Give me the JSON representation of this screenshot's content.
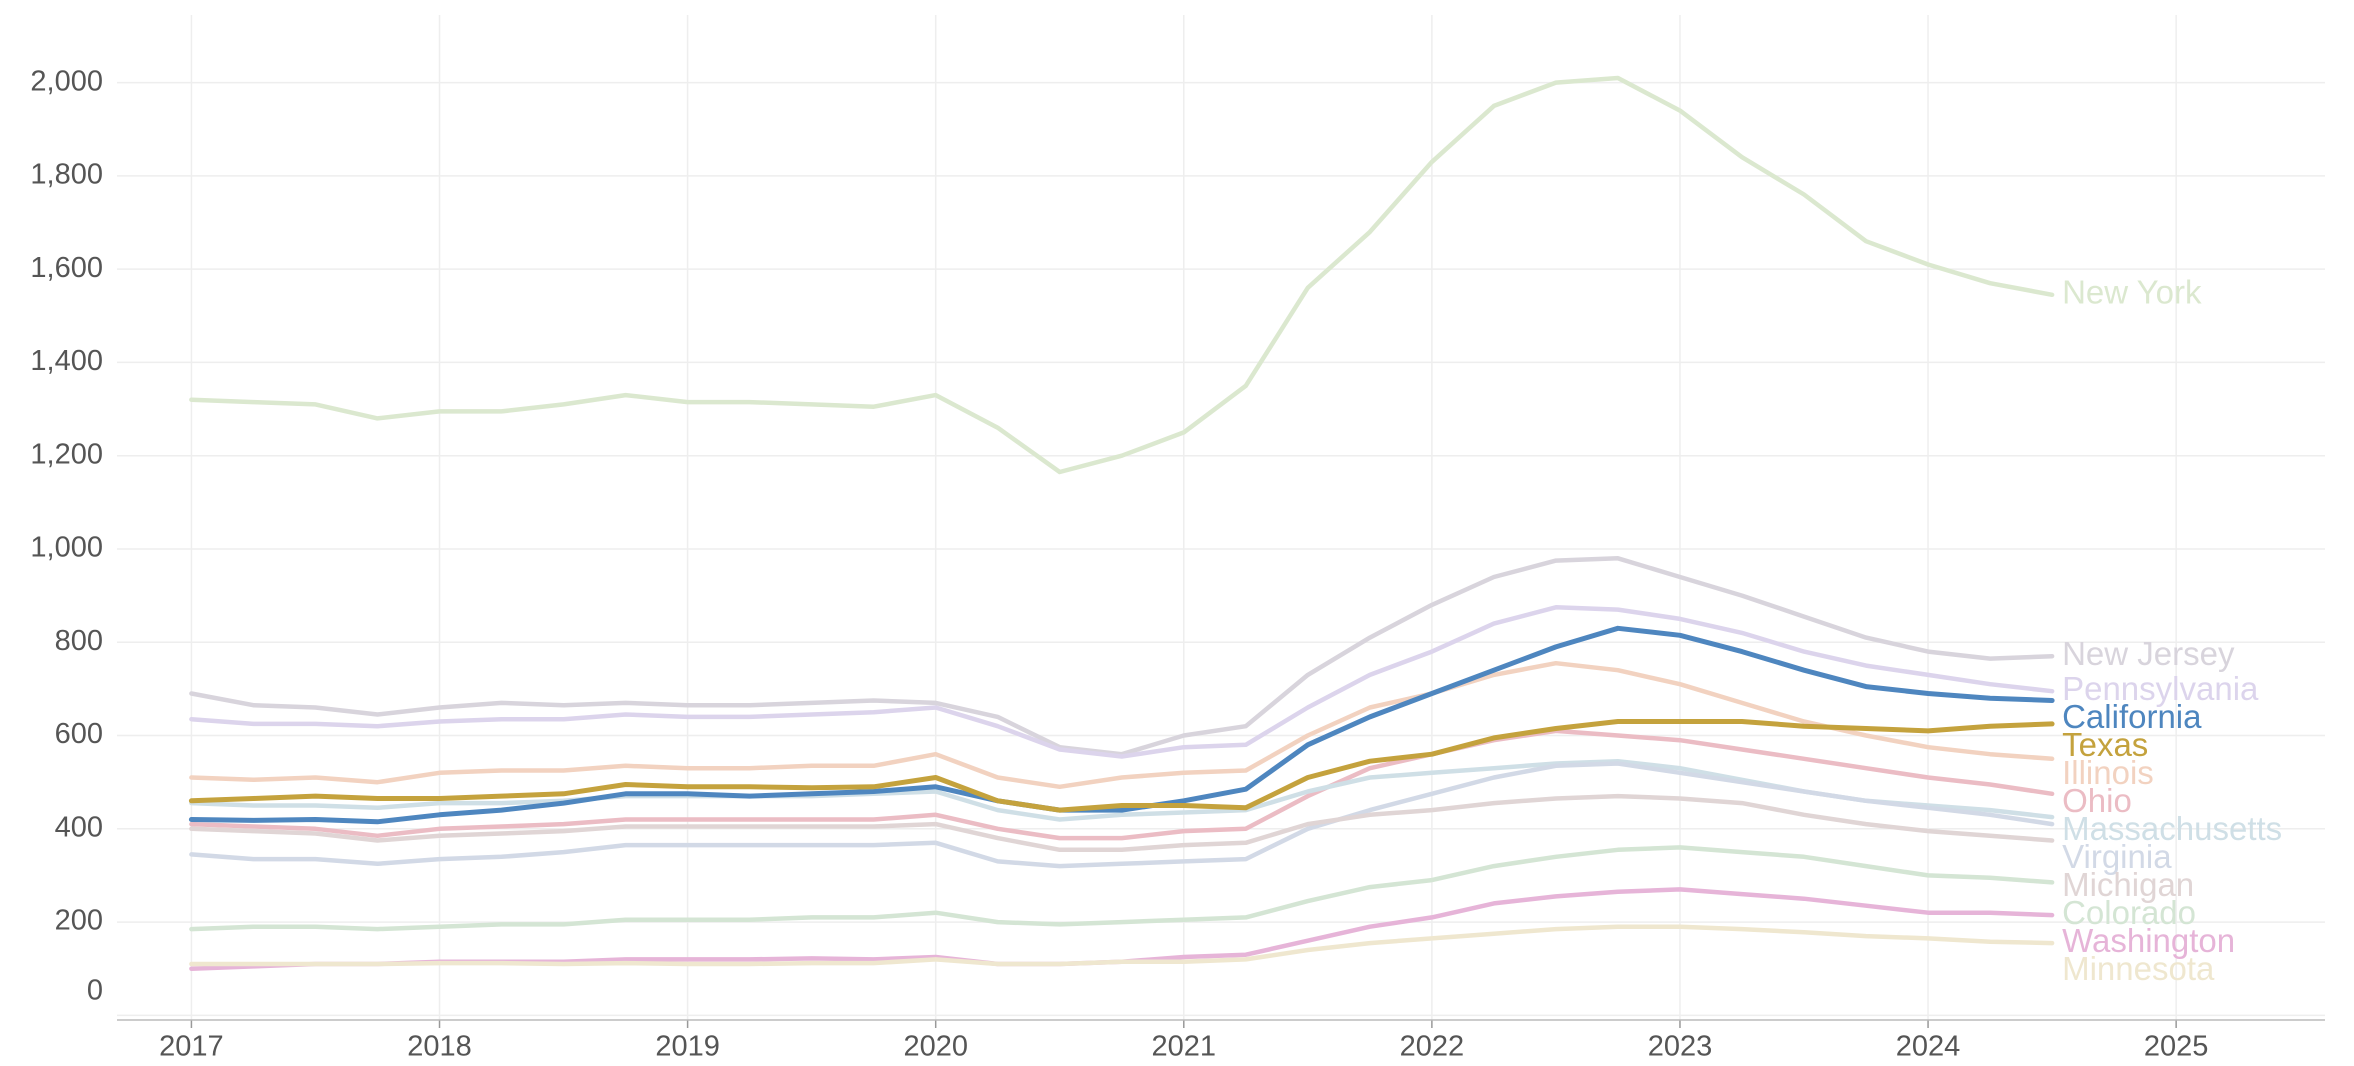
{
  "chart_data": {
    "type": "line",
    "x": [
      2017,
      2017.25,
      2017.5,
      2017.75,
      2018,
      2018.25,
      2018.5,
      2018.75,
      2019,
      2019.25,
      2019.5,
      2019.75,
      2020,
      2020.25,
      2020.5,
      2020.75,
      2021,
      2021.25,
      2021.5,
      2021.75,
      2022,
      2022.25,
      2022.5,
      2022.75,
      2023,
      2023.25,
      2023.5,
      2023.75,
      2024,
      2024.25,
      2024.5
    ],
    "xlim": [
      2016.7,
      2025.6
    ],
    "xticks": [
      2017,
      2018,
      2019,
      2020,
      2021,
      2022,
      2023,
      2024,
      2025
    ],
    "ylim": [
      -10,
      2145
    ],
    "yticks": [
      0,
      200,
      400,
      600,
      800,
      {
        "value": 1000,
        "label": "1,000"
      },
      {
        "value": 1200,
        "label": "1,200"
      },
      {
        "value": 1400,
        "label": "1,400"
      },
      {
        "value": 1600,
        "label": "1,600"
      },
      {
        "value": 1800,
        "label": "1,800"
      },
      {
        "value": 2000,
        "label": "2,000"
      }
    ],
    "grid": true,
    "series": [
      {
        "name": "New York",
        "color": "#dbe8cf",
        "values": [
          1320,
          1315,
          1310,
          1280,
          1295,
          1295,
          1310,
          1330,
          1315,
          1315,
          1310,
          1305,
          1330,
          1260,
          1165,
          1200,
          1250,
          1350,
          1560,
          1680,
          1830,
          1950,
          2000,
          2010,
          1940,
          1840,
          1760,
          1660,
          1610,
          1570,
          1545
        ]
      },
      {
        "name": "New Jersey",
        "color": "#d8d4dc",
        "values": [
          690,
          665,
          660,
          645,
          660,
          670,
          665,
          670,
          665,
          665,
          670,
          675,
          670,
          640,
          575,
          560,
          600,
          620,
          730,
          810,
          880,
          940,
          975,
          980,
          940,
          900,
          855,
          810,
          780,
          765,
          770
        ]
      },
      {
        "name": "Pennsylvania",
        "color": "#dcd4ec",
        "values": [
          635,
          625,
          625,
          620,
          630,
          635,
          635,
          645,
          640,
          640,
          645,
          650,
          660,
          620,
          570,
          555,
          575,
          580,
          660,
          730,
          780,
          840,
          875,
          870,
          850,
          820,
          780,
          750,
          730,
          710,
          695
        ]
      },
      {
        "name": "Illinois",
        "color": "#f2d2c0",
        "values": [
          510,
          505,
          510,
          500,
          520,
          525,
          525,
          535,
          530,
          530,
          535,
          535,
          560,
          510,
          490,
          510,
          520,
          525,
          600,
          660,
          690,
          730,
          755,
          740,
          710,
          670,
          630,
          600,
          575,
          560,
          550
        ]
      },
      {
        "name": "Ohio",
        "color": "#ebbcc4",
        "values": [
          410,
          405,
          400,
          385,
          400,
          405,
          410,
          420,
          420,
          420,
          420,
          420,
          430,
          400,
          380,
          380,
          395,
          400,
          470,
          530,
          560,
          590,
          610,
          600,
          590,
          570,
          550,
          530,
          510,
          495,
          475
        ]
      },
      {
        "name": "Massachusetts",
        "color": "#cfdfe6",
        "values": [
          455,
          450,
          450,
          445,
          455,
          455,
          460,
          470,
          470,
          470,
          470,
          475,
          480,
          440,
          420,
          430,
          435,
          440,
          480,
          510,
          520,
          530,
          540,
          545,
          530,
          505,
          480,
          460,
          450,
          440,
          425
        ]
      },
      {
        "name": "Virginia",
        "color": "#d2d9e6",
        "values": [
          345,
          335,
          335,
          325,
          335,
          340,
          350,
          365,
          365,
          365,
          365,
          365,
          370,
          330,
          320,
          325,
          330,
          335,
          400,
          440,
          475,
          510,
          535,
          540,
          520,
          500,
          480,
          460,
          445,
          430,
          410
        ]
      },
      {
        "name": "Michigan",
        "color": "#e0d5d5",
        "values": [
          400,
          395,
          390,
          375,
          385,
          390,
          395,
          405,
          405,
          405,
          405,
          405,
          410,
          380,
          355,
          355,
          365,
          370,
          410,
          430,
          440,
          455,
          465,
          470,
          465,
          455,
          430,
          410,
          395,
          385,
          375
        ]
      },
      {
        "name": "Colorado",
        "color": "#d4e5d4",
        "values": [
          185,
          190,
          190,
          185,
          190,
          195,
          195,
          205,
          205,
          205,
          210,
          210,
          220,
          200,
          195,
          200,
          205,
          210,
          245,
          275,
          290,
          320,
          340,
          355,
          360,
          350,
          340,
          320,
          300,
          295,
          285
        ]
      },
      {
        "name": "Washington",
        "color": "#e6b4d8",
        "values": [
          100,
          105,
          110,
          110,
          115,
          115,
          115,
          120,
          120,
          120,
          122,
          120,
          125,
          110,
          110,
          115,
          125,
          130,
          160,
          190,
          210,
          240,
          255,
          265,
          270,
          260,
          250,
          235,
          220,
          220,
          215
        ]
      },
      {
        "name": "Minnesota",
        "color": "#efe7cf",
        "values": [
          110,
          110,
          110,
          110,
          112,
          112,
          110,
          112,
          110,
          110,
          112,
          112,
          120,
          110,
          110,
          115,
          115,
          120,
          140,
          155,
          165,
          175,
          185,
          190,
          190,
          185,
          178,
          170,
          165,
          158,
          155
        ]
      },
      {
        "name": "California",
        "color": "#4e86bf",
        "values": [
          420,
          418,
          420,
          415,
          430,
          440,
          455,
          475,
          475,
          470,
          475,
          480,
          490,
          460,
          440,
          440,
          460,
          485,
          580,
          640,
          690,
          740,
          790,
          830,
          815,
          780,
          740,
          705,
          690,
          680,
          675
        ]
      },
      {
        "name": "Texas",
        "color": "#c4a23d",
        "values": [
          460,
          465,
          470,
          465,
          465,
          470,
          475,
          495,
          490,
          490,
          488,
          490,
          510,
          460,
          440,
          450,
          450,
          445,
          510,
          545,
          560,
          595,
          615,
          630,
          630,
          630,
          620,
          615,
          610,
          620,
          625
        ]
      }
    ]
  }
}
